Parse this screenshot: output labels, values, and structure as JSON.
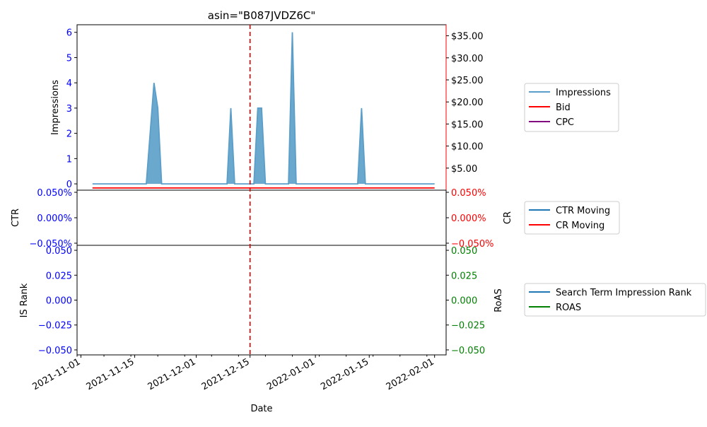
{
  "chart_data": [
    {
      "type": "area",
      "title": "asin=\"B087JVDZ6C\"",
      "ylabel": "Impressions",
      "ylim": [
        -0.25,
        6.3
      ],
      "yticks": [
        "0",
        "1",
        "2",
        "3",
        "4",
        "5",
        "6"
      ],
      "y2ticks": [
        "$5.00",
        "$10.00",
        "$15.00",
        "$20.00",
        "$25.00",
        "$30.00",
        "$35.00"
      ],
      "y2lim": [
        0,
        37.5
      ],
      "legend": [
        "Impressions",
        "Bid",
        "CPC"
      ],
      "legend_position": "right",
      "series": [
        {
          "name": "Impressions",
          "color": "#5a9ec9",
          "x": [
            "2021-11-04",
            "2021-11-18",
            "2021-11-20",
            "2021-11-21",
            "2021-11-22",
            "2021-12-09",
            "2021-12-10",
            "2021-12-11",
            "2021-12-16",
            "2021-12-17",
            "2021-12-18",
            "2021-12-19",
            "2021-12-25",
            "2021-12-26",
            "2021-12-27",
            "2022-01-12",
            "2022-01-13",
            "2022-01-14",
            "2022-02-01"
          ],
          "values": [
            0,
            0,
            4,
            3,
            0,
            0,
            3,
            0,
            0,
            3,
            3,
            0,
            0,
            6,
            0,
            0,
            3,
            0,
            0
          ]
        },
        {
          "name": "Bid",
          "color": "#ff0000",
          "x": [
            "2021-11-04",
            "2022-02-01"
          ],
          "values": [
            0.5,
            0.5
          ]
        },
        {
          "name": "CPC",
          "color": "#800080",
          "x": [],
          "values": []
        }
      ],
      "vline": {
        "x": "2021-12-15",
        "color": "#dd0000",
        "style": "dashed"
      }
    },
    {
      "type": "line",
      "ylabel": "CTR",
      "y2label": "CR",
      "yticks": [
        "0.050%",
        "0.000%",
        "−0.050%"
      ],
      "y2ticks": [
        "0.050%",
        "0.000%",
        "−0.050%"
      ],
      "ylim": [
        -0.05,
        0.05
      ],
      "legend": [
        "CTR Moving",
        "CR Moving"
      ],
      "series": [
        {
          "name": "CTR Moving",
          "color": "#1f77b4",
          "values": []
        },
        {
          "name": "CR Moving",
          "color": "#ff0000",
          "values": []
        }
      ]
    },
    {
      "type": "line",
      "ylabel": "IS Rank",
      "y2label": "RoAS",
      "xlabel": "Date",
      "yticks": [
        "0.050",
        "0.025",
        "0.000",
        "−0.025",
        "−0.050"
      ],
      "y2ticks": [
        "0.050",
        "0.025",
        "0.000",
        "−0.025",
        "−0.050"
      ],
      "ylim": [
        -0.055,
        0.055
      ],
      "xticks": [
        "2021-11-01",
        "2021-11-15",
        "2021-12-01",
        "2021-12-15",
        "2022-01-01",
        "2022-01-15",
        "2022-02-01"
      ],
      "xlim": [
        "2021-10-31",
        "2022-02-04"
      ],
      "legend": [
        "Search Term Impression Rank",
        "ROAS"
      ],
      "series": [
        {
          "name": "Search Term Impression Rank",
          "color": "#1f77b4",
          "values": []
        },
        {
          "name": "ROAS",
          "color": "#008000",
          "values": []
        }
      ]
    }
  ],
  "colors": {
    "left_axis": "#0000ff",
    "right_axis_top": "#ff0000",
    "right_axis_bottom": "#008000",
    "area_fill": "#5a9ec9"
  }
}
